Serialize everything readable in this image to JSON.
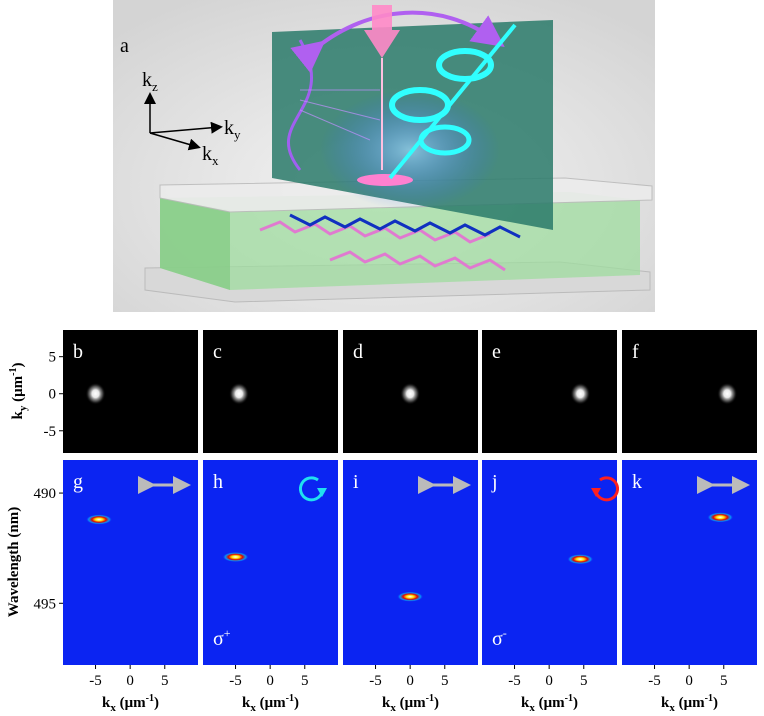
{
  "figure": {
    "panel_a": {
      "label": "a",
      "axes": [
        {
          "base": "k",
          "sub": "z"
        },
        {
          "base": "k",
          "sub": "y"
        },
        {
          "base": "k",
          "sub": "x"
        }
      ]
    },
    "momentum_row": {
      "ylabel": {
        "base": "k",
        "sub": "y",
        "unit": " (μm",
        "exp": "-1",
        "close": ")"
      },
      "ylim": [
        -8.0,
        8.6
      ],
      "yticks": [
        5,
        0,
        -5
      ],
      "xlim": [
        -9.7,
        9.8
      ],
      "panels": [
        {
          "label": "b",
          "spot": {
            "kx": -5.0,
            "ky": 0
          }
        },
        {
          "label": "c",
          "spot": {
            "kx": -4.5,
            "ky": 0
          }
        },
        {
          "label": "d",
          "spot": {
            "kx": 0,
            "ky": 0
          }
        },
        {
          "label": "e",
          "spot": {
            "kx": 4.5,
            "ky": 0
          }
        },
        {
          "label": "f",
          "spot": {
            "kx": 5.5,
            "ky": 0
          }
        }
      ]
    },
    "spectra_row": {
      "ylabel": "Wavelength (nm)",
      "ylim": [
        497.8,
        488.5
      ],
      "yticks": [
        490,
        495
      ],
      "xlim": [
        -9.7,
        9.8
      ],
      "xticks": [
        -5,
        0,
        5
      ],
      "xlabel": {
        "base": "k",
        "sub": "x",
        "unit": " (μm",
        "exp": "-1",
        "close": ")"
      },
      "panels": [
        {
          "label": "g",
          "spot": {
            "kx": -4.5,
            "wavelength": 491.2
          }
        },
        {
          "label": "h",
          "spot": {
            "kx": -5.0,
            "wavelength": 492.9
          },
          "pol": {
            "base": "σ",
            "sup": "+"
          }
        },
        {
          "label": "i",
          "spot": {
            "kx": 0,
            "wavelength": 494.7
          }
        },
        {
          "label": "j",
          "spot": {
            "kx": 4.5,
            "wavelength": 493.0
          },
          "pol": {
            "base": "σ",
            "sup": "-"
          }
        },
        {
          "label": "k",
          "spot": {
            "kx": 4.5,
            "wavelength": 491.1
          }
        }
      ]
    }
  }
}
